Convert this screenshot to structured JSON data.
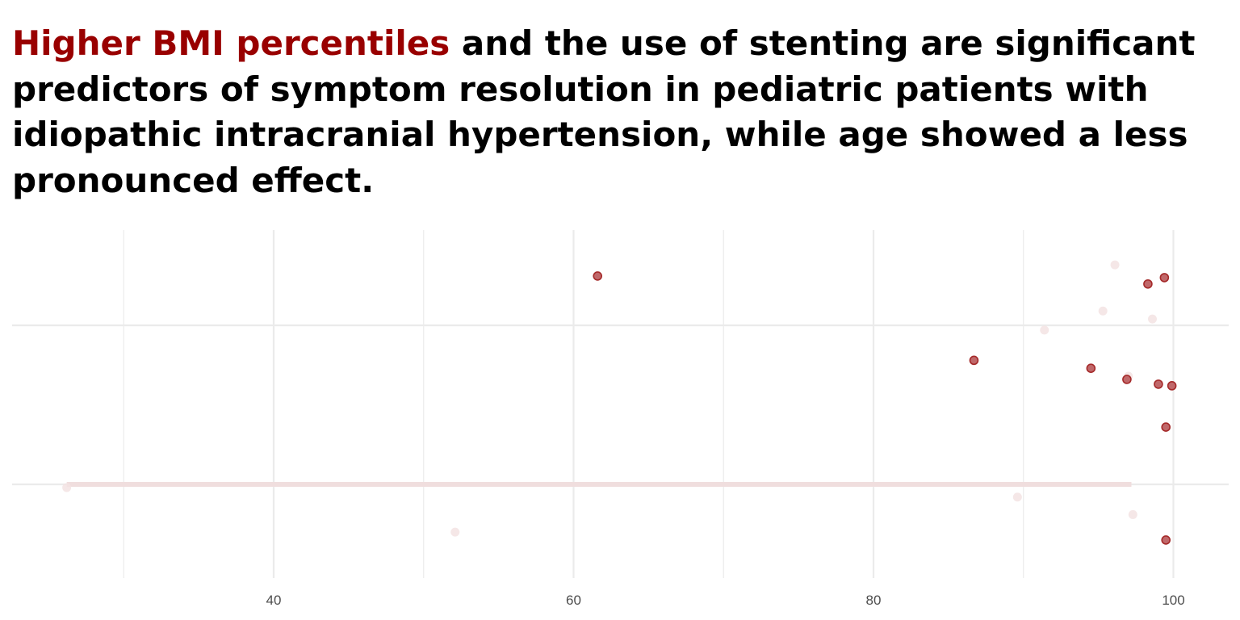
{
  "title": {
    "highlight": "Higher BMI percentiles",
    "rest": " and the use of stenting are significant predictors of symptom resolution in pediatric patients with idiopathic intracranial hypertension, while age showed a less pronounced effect."
  },
  "colors": {
    "highlight": "#990000",
    "point_strong_fill": "#c0686a",
    "point_strong_stroke": "#a52a2a",
    "point_faded": "#f3e3e3",
    "range_line": "#f0dede",
    "grid": "#ebebeb"
  },
  "chart_data": {
    "type": "scatter",
    "title": "",
    "xlabel": "",
    "ylabel": "",
    "xlim": [
      22,
      103
    ],
    "x_ticks": [
      40,
      60,
      80,
      100
    ],
    "y_categories_count": 2,
    "grid": true,
    "legend": "none",
    "series": [
      {
        "style": "strong",
        "points": [
          {
            "x": 61.6,
            "y": 2.31
          },
          {
            "x": 98.3,
            "y": 2.26
          },
          {
            "x": 99.4,
            "y": 2.3
          },
          {
            "x": 86.7,
            "y": 1.78
          },
          {
            "x": 94.5,
            "y": 1.73
          },
          {
            "x": 96.9,
            "y": 1.66
          },
          {
            "x": 99.0,
            "y": 1.63
          },
          {
            "x": 99.9,
            "y": 1.62
          },
          {
            "x": 99.5,
            "y": 1.36
          },
          {
            "x": 99.5,
            "y": 0.65
          }
        ]
      },
      {
        "style": "faded",
        "points": [
          {
            "x": 96.1,
            "y": 2.38
          },
          {
            "x": 95.3,
            "y": 2.09
          },
          {
            "x": 98.6,
            "y": 2.04
          },
          {
            "x": 91.4,
            "y": 1.97
          },
          {
            "x": 97.0,
            "y": 1.68
          },
          {
            "x": 89.6,
            "y": 0.92
          },
          {
            "x": 97.3,
            "y": 0.81
          },
          {
            "x": 52.1,
            "y": 0.7
          },
          {
            "x": 26.2,
            "y": 0.98
          }
        ]
      }
    ],
    "range_segment": {
      "x_start": 26.2,
      "x_end": 97.2,
      "y": 1
    }
  }
}
